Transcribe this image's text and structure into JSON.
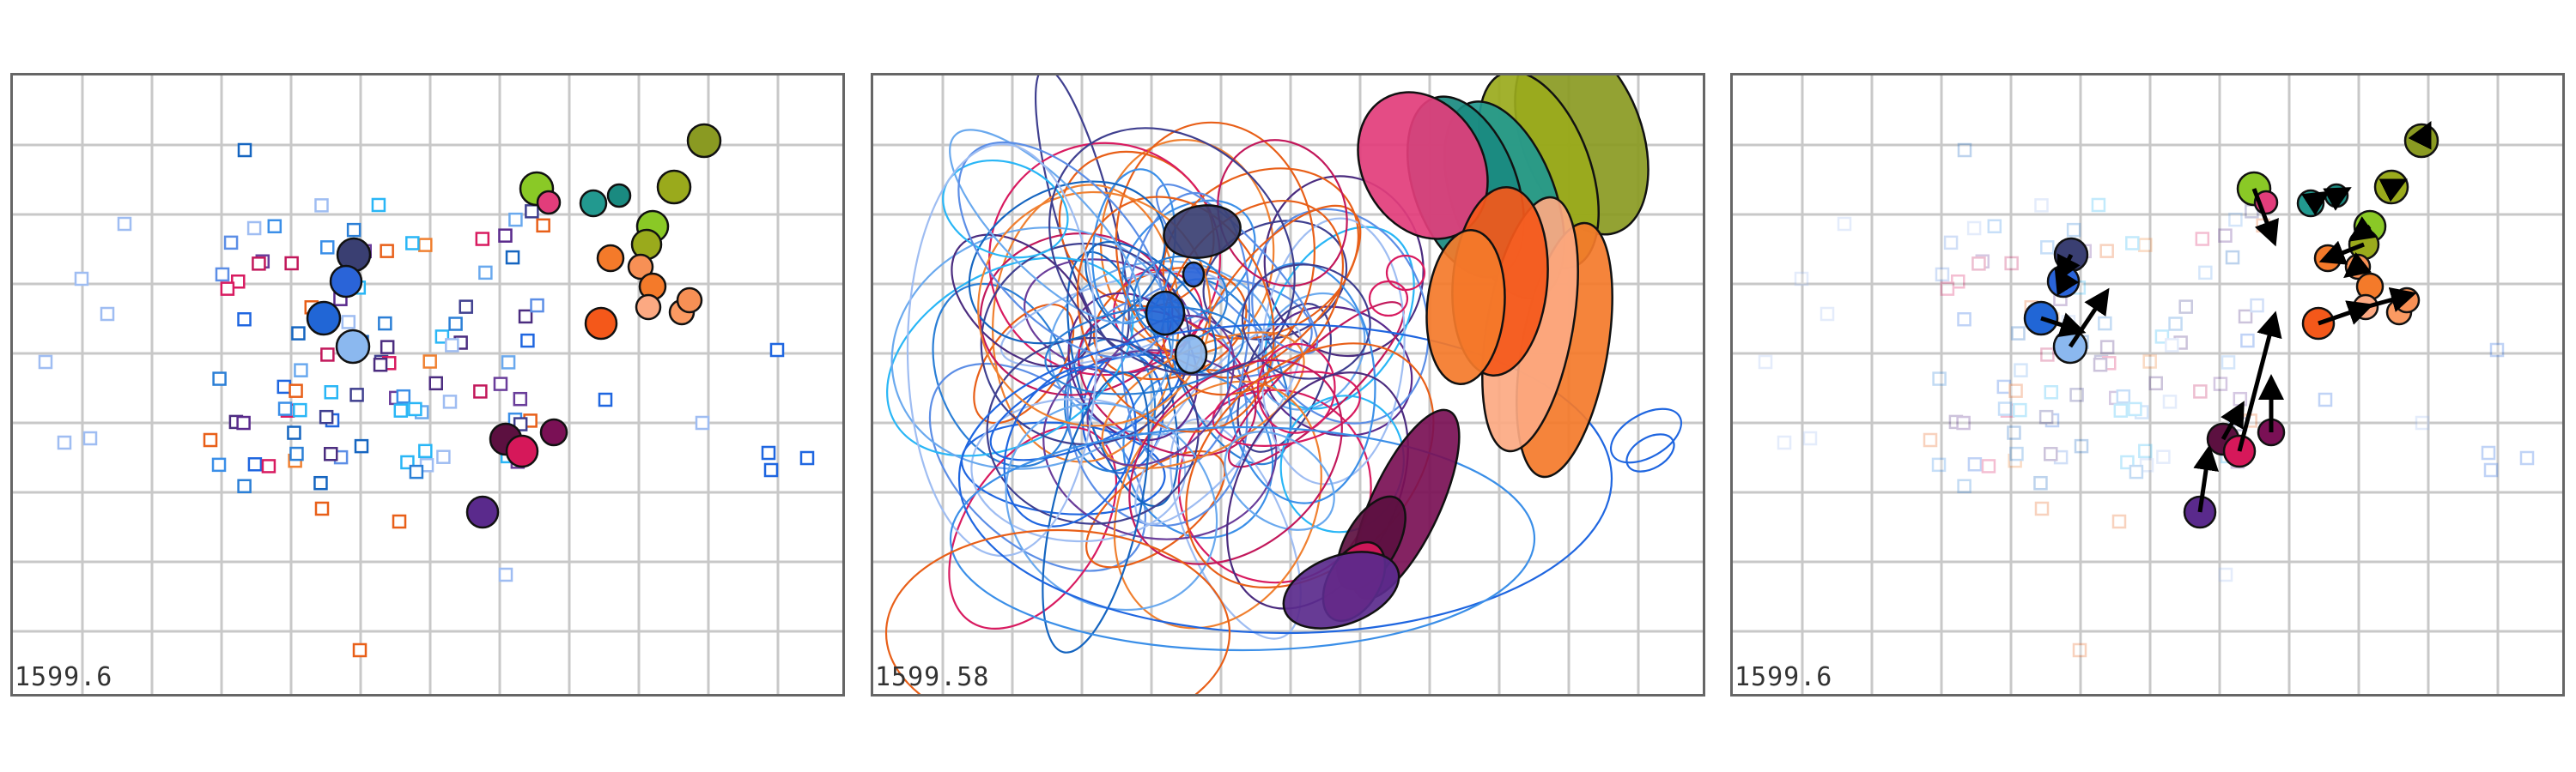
{
  "panels": [
    {
      "id": "p1",
      "timestamp": "1599.6",
      "type": "scatter"
    },
    {
      "id": "p2",
      "timestamp": "1599.58",
      "type": "ellipses"
    },
    {
      "id": "p3",
      "timestamp": "1599.6",
      "type": "arrows"
    }
  ],
  "colors": {
    "grid": "#c8c8c8",
    "border": "#666666",
    "palette": [
      "#9fbdf2",
      "#5c8ee6",
      "#1f66e0",
      "#2b7fd6",
      "#3b8fe8",
      "#6aa9ee",
      "#e85f18",
      "#f08030",
      "#d81b60",
      "#c2185b",
      "#6a3d9a",
      "#4b2c7f",
      "#3f3f8f",
      "#5a2a8c",
      "#29b6f6",
      "#1565c0"
    ]
  },
  "markers": [
    {
      "name": "bright-green",
      "color": "#8ac926"
    },
    {
      "name": "pink",
      "color": "#e23d7b"
    },
    {
      "name": "teal",
      "color": "#22998f"
    },
    {
      "name": "teal-dark",
      "color": "#1a8a80"
    },
    {
      "name": "olive",
      "color": "#9aaa1c"
    },
    {
      "name": "olive-dark",
      "color": "#8a9a22"
    },
    {
      "name": "orange-1",
      "color": "#f47a2a"
    },
    {
      "name": "orange-2",
      "color": "#f79055"
    },
    {
      "name": "peach-1",
      "color": "#fca982"
    },
    {
      "name": "peach-2",
      "color": "#fb9a62"
    },
    {
      "name": "orange-red",
      "color": "#f4581a"
    },
    {
      "name": "navy",
      "color": "#3a3f72"
    },
    {
      "name": "blue",
      "color": "#2166d6"
    },
    {
      "name": "blue-royal",
      "color": "#2a64d8"
    },
    {
      "name": "light-blue",
      "color": "#8bb8ef"
    },
    {
      "name": "maroon",
      "color": "#5c1040"
    },
    {
      "name": "crimson",
      "color": "#d6185a"
    },
    {
      "name": "plum",
      "color": "#7a1055"
    },
    {
      "name": "purple",
      "color": "#5a2a8c"
    }
  ]
}
